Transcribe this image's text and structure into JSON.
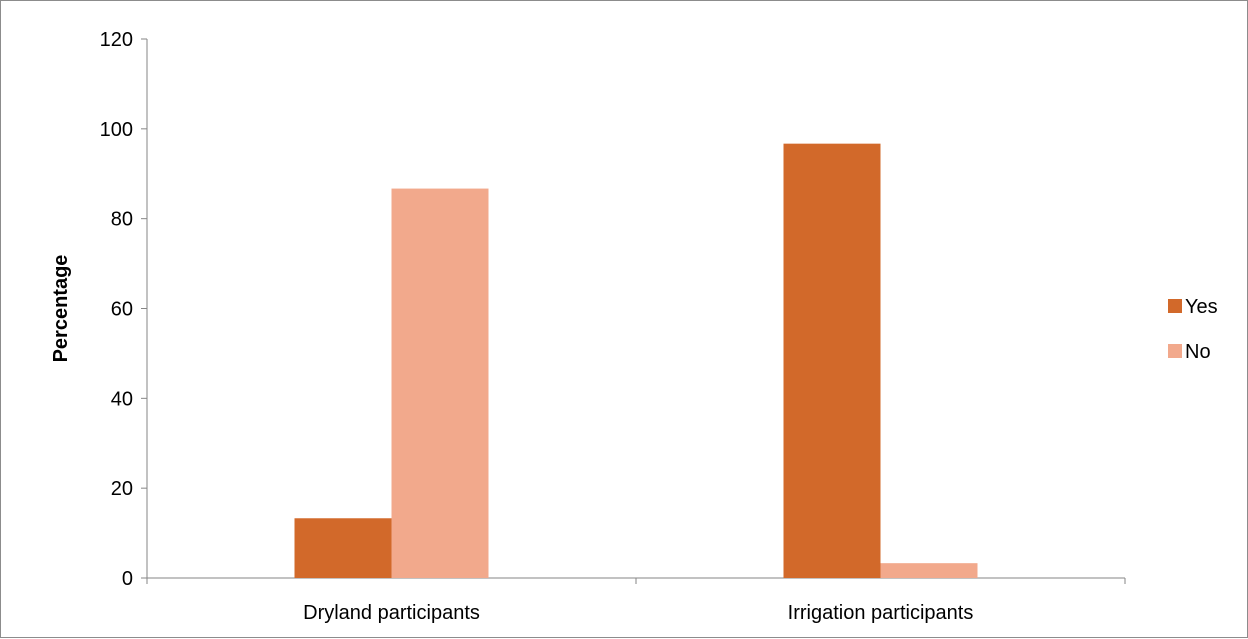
{
  "chart_data": {
    "type": "bar",
    "categories": [
      "Dryland participants",
      "Irrigation participants"
    ],
    "series": [
      {
        "name": "Yes",
        "values": [
          13.3,
          96.7
        ],
        "color": "#d2692a"
      },
      {
        "name": "No",
        "values": [
          86.7,
          3.3
        ],
        "color": "#f2a98c"
      }
    ],
    "title": "",
    "xlabel": "",
    "ylabel": "Percentage",
    "ylim": [
      0,
      120
    ],
    "yticks": [
      0,
      20,
      40,
      60,
      80,
      100,
      120
    ],
    "grid": false,
    "legend": "right"
  }
}
